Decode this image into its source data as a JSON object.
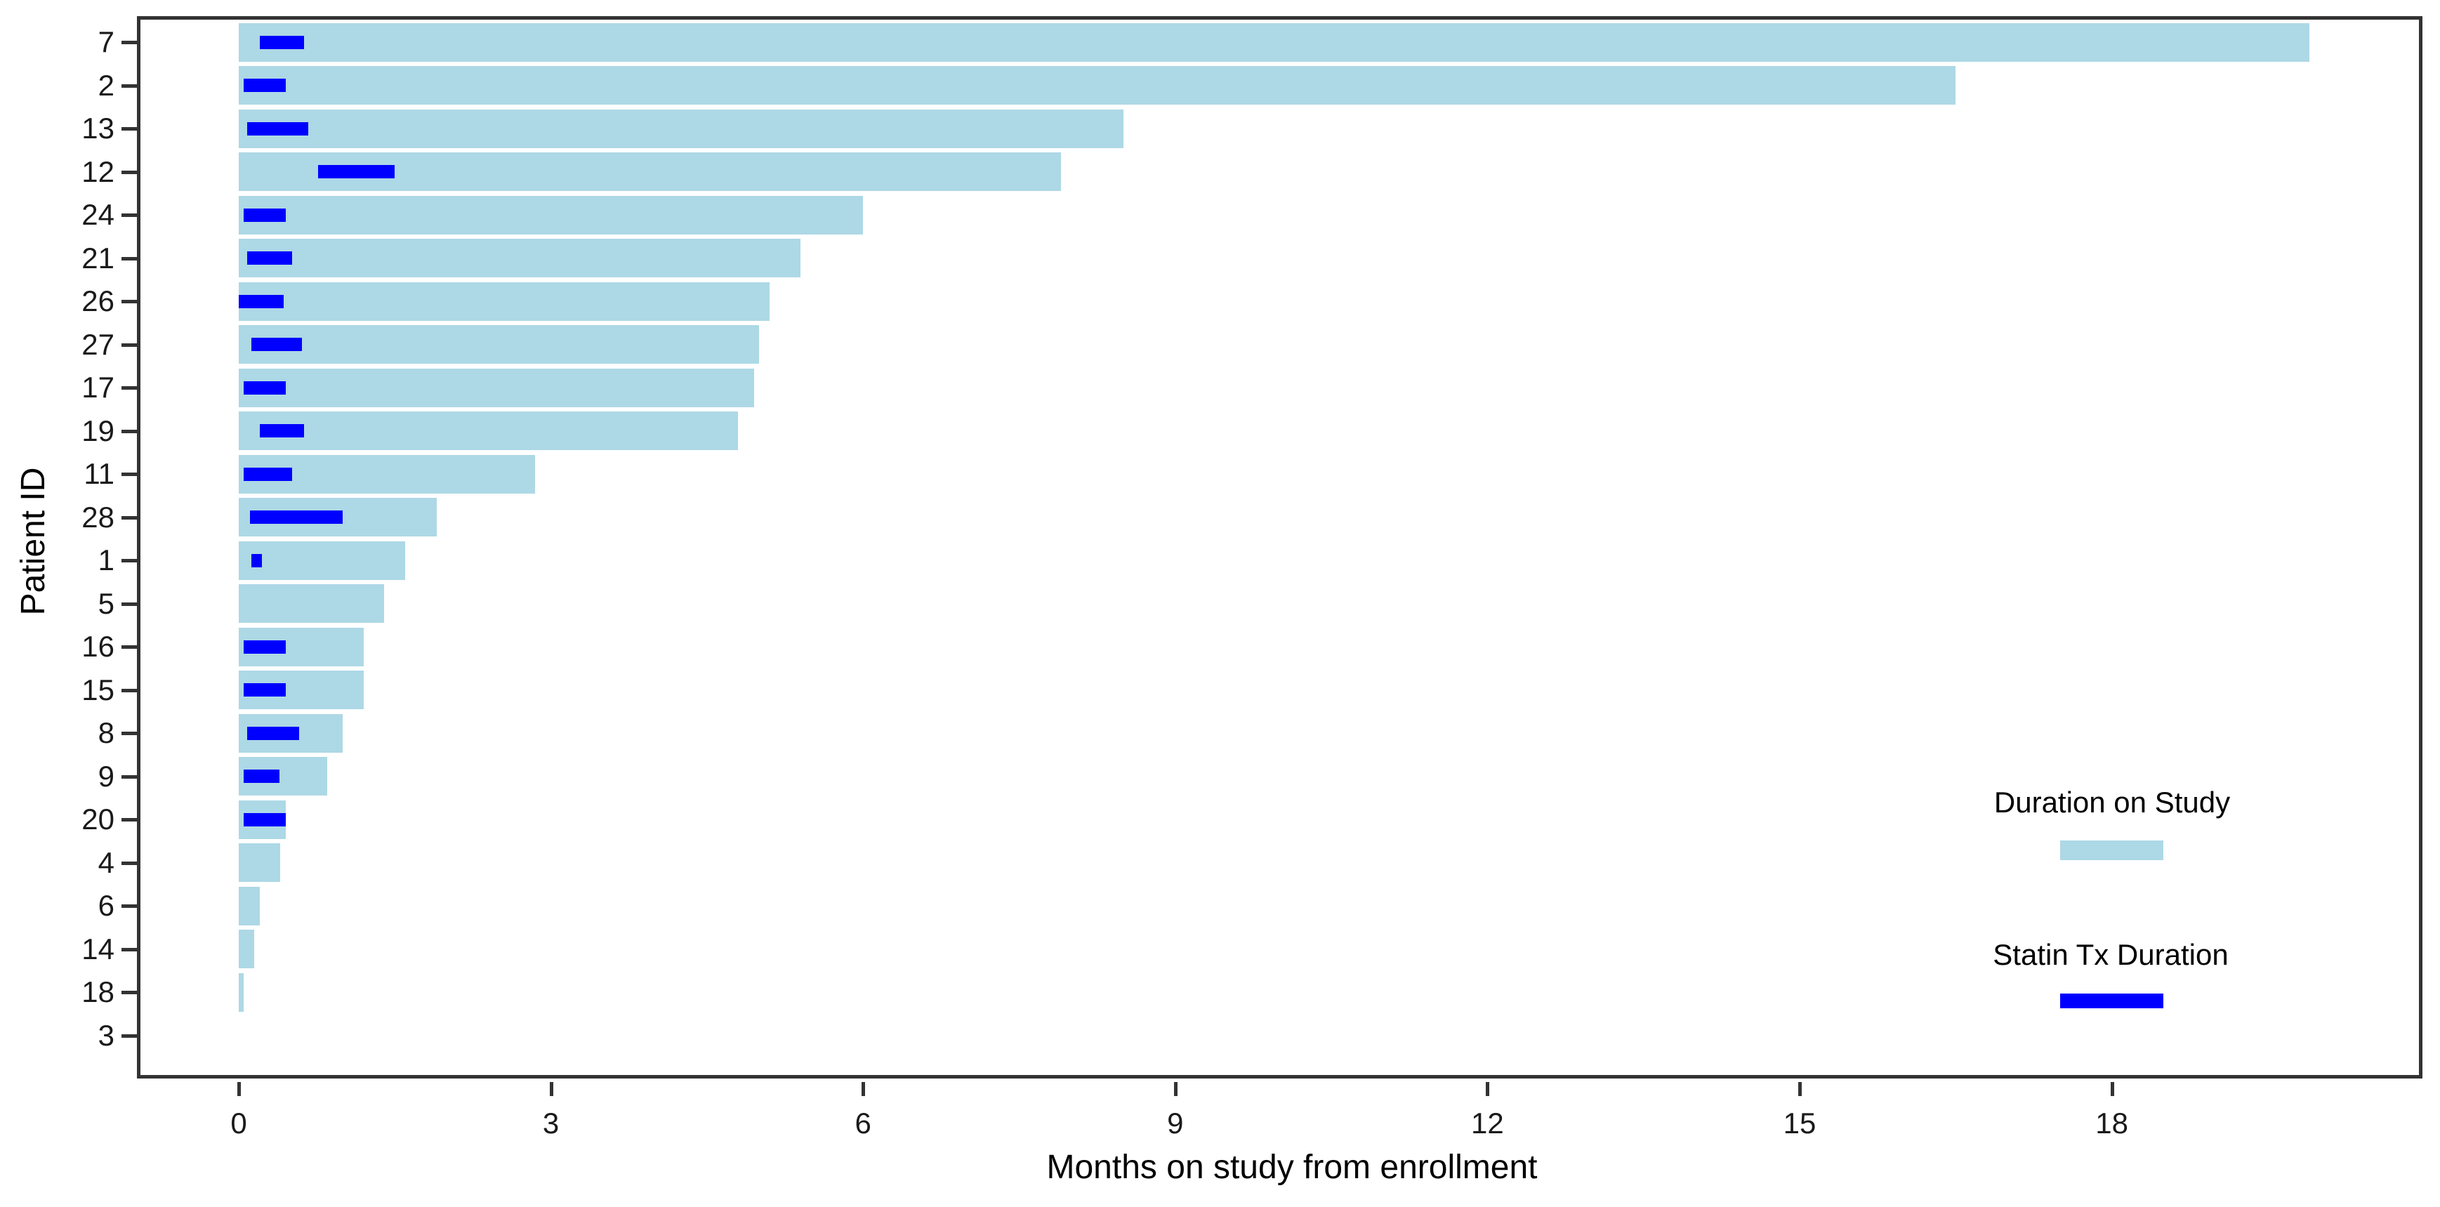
{
  "chart_data": {
    "type": "bar",
    "orientation": "horizontal",
    "title": "",
    "xlabel": "Months on study from enrollment",
    "ylabel": "Patient ID",
    "x_ticks": [
      0,
      3,
      6,
      9,
      12,
      15,
      18
    ],
    "xlim": [
      -1,
      21
    ],
    "grid": false,
    "legend_position": "right-center",
    "colors": {
      "duration_on_study": "#ADD8E6",
      "statin_tx": "#0000FF",
      "axis": "#333333",
      "text": "#000000"
    },
    "legend": [
      {
        "label": "Duration on Study",
        "color": "#ADD8E6"
      },
      {
        "label": "Statin Tx Duration",
        "color": "#0000FF"
      }
    ],
    "series": [
      {
        "name": "Duration on Study",
        "field": "duration_on_study"
      },
      {
        "name": "Statin Tx Duration",
        "field": "statin_start / statin_end"
      }
    ],
    "patients": [
      {
        "id": "7",
        "duration_on_study": 19.9,
        "statin_start": 0.2,
        "statin_end": 0.63
      },
      {
        "id": "2",
        "duration_on_study": 16.5,
        "statin_start": 0.05,
        "statin_end": 0.45
      },
      {
        "id": "13",
        "duration_on_study": 8.5,
        "statin_start": 0.08,
        "statin_end": 0.67
      },
      {
        "id": "12",
        "duration_on_study": 7.9,
        "statin_start": 0.76,
        "statin_end": 1.5
      },
      {
        "id": "24",
        "duration_on_study": 6.0,
        "statin_start": 0.05,
        "statin_end": 0.45
      },
      {
        "id": "21",
        "duration_on_study": 5.4,
        "statin_start": 0.08,
        "statin_end": 0.51
      },
      {
        "id": "26",
        "duration_on_study": 5.1,
        "statin_start": 0.0,
        "statin_end": 0.43
      },
      {
        "id": "27",
        "duration_on_study": 5.0,
        "statin_start": 0.12,
        "statin_end": 0.61
      },
      {
        "id": "17",
        "duration_on_study": 4.95,
        "statin_start": 0.05,
        "statin_end": 0.45
      },
      {
        "id": "19",
        "duration_on_study": 4.8,
        "statin_start": 0.2,
        "statin_end": 0.63
      },
      {
        "id": "11",
        "duration_on_study": 2.85,
        "statin_start": 0.05,
        "statin_end": 0.51
      },
      {
        "id": "28",
        "duration_on_study": 1.9,
        "statin_start": 0.11,
        "statin_end": 1.0
      },
      {
        "id": "1",
        "duration_on_study": 1.6,
        "statin_start": 0.12,
        "statin_end": 0.22
      },
      {
        "id": "5",
        "duration_on_study": 1.4,
        "statin_start": null,
        "statin_end": null
      },
      {
        "id": "16",
        "duration_on_study": 1.2,
        "statin_start": 0.05,
        "statin_end": 0.45
      },
      {
        "id": "15",
        "duration_on_study": 1.2,
        "statin_start": 0.05,
        "statin_end": 0.45
      },
      {
        "id": "8",
        "duration_on_study": 1.0,
        "statin_start": 0.08,
        "statin_end": 0.58
      },
      {
        "id": "9",
        "duration_on_study": 0.85,
        "statin_start": 0.05,
        "statin_end": 0.39
      },
      {
        "id": "20",
        "duration_on_study": 0.45,
        "statin_start": 0.05,
        "statin_end": 0.45
      },
      {
        "id": "4",
        "duration_on_study": 0.4,
        "statin_start": null,
        "statin_end": null
      },
      {
        "id": "6",
        "duration_on_study": 0.2,
        "statin_start": null,
        "statin_end": null
      },
      {
        "id": "14",
        "duration_on_study": 0.15,
        "statin_start": null,
        "statin_end": null
      },
      {
        "id": "18",
        "duration_on_study": 0.05,
        "statin_start": null,
        "statin_end": null
      },
      {
        "id": "3",
        "duration_on_study": 0.0,
        "statin_start": null,
        "statin_end": null
      }
    ]
  }
}
